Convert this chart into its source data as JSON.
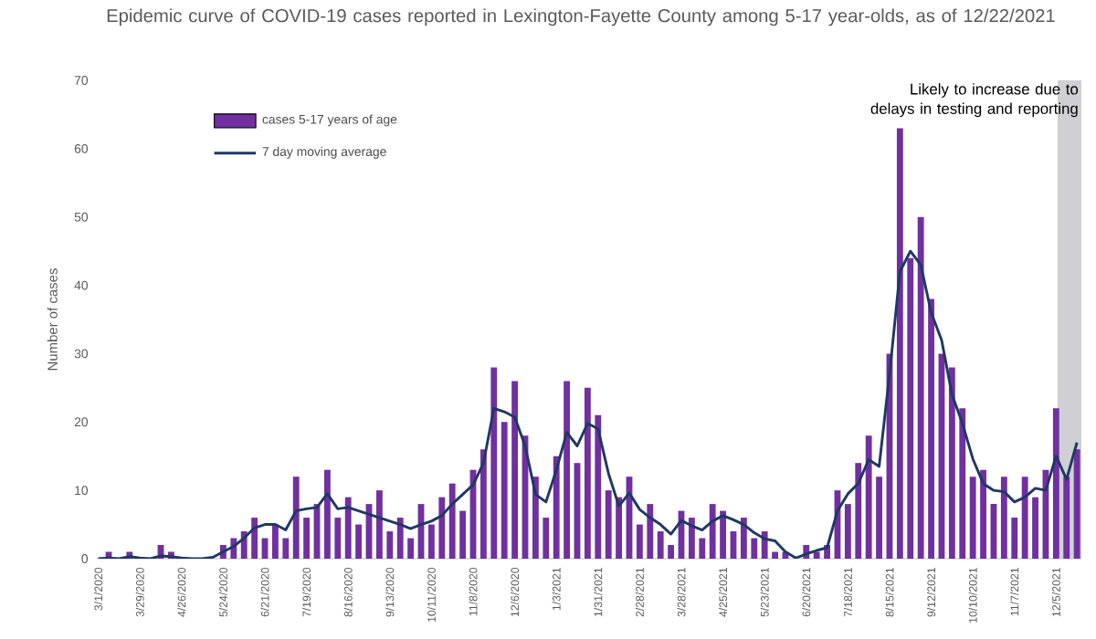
{
  "chart_data": {
    "type": "bar",
    "title": "Epidemic curve of COVID-19 cases reported in Lexington-Fayette County among 5-17 year-olds, as of 12/22/2021",
    "ylabel": "Number of cases",
    "x": [
      "2020-03-01",
      "2020-03-08",
      "2020-03-15",
      "2020-03-22",
      "2020-03-29",
      "2020-04-05",
      "2020-04-12",
      "2020-04-19",
      "2020-04-26",
      "2020-05-03",
      "2020-05-10",
      "2020-05-17",
      "2020-05-24",
      "2020-05-31",
      "2020-06-07",
      "2020-06-14",
      "2020-06-21",
      "2020-06-28",
      "2020-07-05",
      "2020-07-12",
      "2020-07-19",
      "2020-07-26",
      "2020-08-02",
      "2020-08-09",
      "2020-08-16",
      "2020-08-23",
      "2020-08-30",
      "2020-09-06",
      "2020-09-13",
      "2020-09-20",
      "2020-09-27",
      "2020-10-04",
      "2020-10-11",
      "2020-10-18",
      "2020-10-25",
      "2020-11-01",
      "2020-11-08",
      "2020-11-15",
      "2020-11-22",
      "2020-11-29",
      "2020-12-06",
      "2020-12-13",
      "2020-12-20",
      "2020-12-27",
      "2021-01-03",
      "2021-01-10",
      "2021-01-17",
      "2021-01-24",
      "2021-01-31",
      "2021-02-07",
      "2021-02-14",
      "2021-02-21",
      "2021-02-28",
      "2021-03-07",
      "2021-03-14",
      "2021-03-21",
      "2021-03-28",
      "2021-04-04",
      "2021-04-11",
      "2021-04-18",
      "2021-04-25",
      "2021-05-02",
      "2021-05-09",
      "2021-05-16",
      "2021-05-23",
      "2021-05-30",
      "2021-06-06",
      "2021-06-13",
      "2021-06-20",
      "2021-06-27",
      "2021-07-04",
      "2021-07-11",
      "2021-07-18",
      "2021-07-25",
      "2021-08-01",
      "2021-08-08",
      "2021-08-15",
      "2021-08-22",
      "2021-08-29",
      "2021-09-05",
      "2021-09-12",
      "2021-09-19",
      "2021-09-26",
      "2021-10-03",
      "2021-10-10",
      "2021-10-17",
      "2021-10-24",
      "2021-10-31",
      "2021-11-07",
      "2021-11-14",
      "2021-11-21",
      "2021-11-28",
      "2021-12-05",
      "2021-12-12",
      "2021-12-19"
    ],
    "series": [
      {
        "name": "cases 5-17 years of age",
        "color": "#7030a0",
        "values": [
          0,
          1,
          0,
          1,
          0,
          0,
          2,
          1,
          0,
          0,
          0,
          null,
          2,
          3,
          4,
          6,
          3,
          5,
          3,
          12,
          6,
          8,
          13,
          6,
          9,
          5,
          8,
          10,
          4,
          6,
          3,
          8,
          5,
          9,
          11,
          7,
          13,
          16,
          28,
          20,
          26,
          18,
          12,
          6,
          15,
          26,
          14,
          25,
          21,
          10,
          9,
          12,
          5,
          8,
          4,
          2,
          7,
          6,
          3,
          8,
          7,
          4,
          6,
          3,
          4,
          1,
          1,
          0,
          2,
          1,
          2,
          10,
          8,
          14,
          18,
          12,
          30,
          63,
          44,
          50,
          38,
          30,
          28,
          22,
          12,
          13,
          8,
          12,
          6,
          12,
          9,
          13,
          22,
          12,
          16
        ]
      },
      {
        "name": "7 day moving average",
        "type": "line",
        "color": "#1f3864",
        "values": [
          0,
          0.1,
          0,
          0.3,
          0.1,
          0,
          0.4,
          0.3,
          0.1,
          0,
          0,
          0.2,
          1,
          1.8,
          3,
          4.5,
          5,
          5,
          4.2,
          7,
          7.3,
          7.5,
          9.5,
          7.3,
          7.5,
          7,
          6.5,
          6,
          5.5,
          5,
          4.4,
          5,
          5.5,
          6.3,
          8,
          9.4,
          10.8,
          14,
          22,
          21.5,
          20.7,
          16.5,
          9.4,
          8.3,
          13,
          18.5,
          16.5,
          19.8,
          19,
          12.5,
          7.7,
          9.6,
          7.2,
          6,
          5,
          3.6,
          5.6,
          4.8,
          4.2,
          5.5,
          6.3,
          5.7,
          5,
          3.8,
          2.9,
          2.6,
          1,
          0.1,
          0.7,
          1.2,
          1.6,
          7,
          9.5,
          11,
          14.5,
          13.5,
          27,
          42,
          45,
          43,
          36,
          32,
          24,
          19.8,
          14.6,
          11,
          10,
          9.8,
          8.3,
          9,
          10.3,
          10,
          15,
          11.6,
          17
        ]
      }
    ],
    "xlim": [
      "2020-02-29",
      "2021-12-22"
    ],
    "xticks": [
      {
        "value": "2020-03-01",
        "label": "3/1/2020"
      },
      {
        "value": "2020-03-29",
        "label": "3/29/2020"
      },
      {
        "value": "2020-04-26",
        "label": "4/26/2020"
      },
      {
        "value": "2020-05-24",
        "label": "5/24/2020"
      },
      {
        "value": "2020-06-21",
        "label": "6/21/2020"
      },
      {
        "value": "2020-07-19",
        "label": "7/19/2020"
      },
      {
        "value": "2020-08-16",
        "label": "8/16/2020"
      },
      {
        "value": "2020-09-13",
        "label": "9/13/2020"
      },
      {
        "value": "2020-10-11",
        "label": "10/11/2020"
      },
      {
        "value": "2020-11-08",
        "label": "11/8/2020"
      },
      {
        "value": "2020-12-06",
        "label": "12/6/2020"
      },
      {
        "value": "2021-01-03",
        "label": "1/3/2021"
      },
      {
        "value": "2021-01-31",
        "label": "1/31/2021"
      },
      {
        "value": "2021-02-28",
        "label": "2/28/2021"
      },
      {
        "value": "2021-03-28",
        "label": "3/28/2021"
      },
      {
        "value": "2021-04-25",
        "label": "4/25/2021"
      },
      {
        "value": "2021-05-23",
        "label": "5/23/2021"
      },
      {
        "value": "2021-06-20",
        "label": "6/20/2021"
      },
      {
        "value": "2021-07-18",
        "label": "7/18/2021"
      },
      {
        "value": "2021-08-15",
        "label": "8/15/2021"
      },
      {
        "value": "2021-09-12",
        "label": "9/12/2021"
      },
      {
        "value": "2021-10-10",
        "label": "10/10/2021"
      },
      {
        "value": "2021-11-07",
        "label": "11/7/2021"
      },
      {
        "value": "2021-12-05",
        "label": "12/5/2021"
      }
    ],
    "ylim": [
      0,
      70
    ],
    "yticks": [
      0,
      10,
      20,
      30,
      40,
      50,
      60,
      70
    ],
    "legend": "top left",
    "bands": [
      {
        "axis": "x",
        "from": "2021-12-06",
        "to": "2021-12-22",
        "label": "Likely to increase due to delays in testing and reporting",
        "color": "#d0d0d4"
      }
    ]
  }
}
